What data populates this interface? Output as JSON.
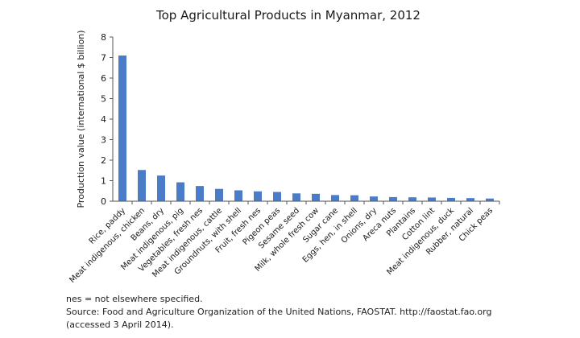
{
  "chart_data": {
    "type": "bar",
    "title": "Top Agricultural Products in Myanmar, 2012",
    "ylabel": "Production value (international $ billion)",
    "xlabel": "",
    "ylim": [
      0,
      8
    ],
    "yticks": [
      0,
      1,
      2,
      3,
      4,
      5,
      6,
      7,
      8
    ],
    "grid": false,
    "bar_color": "#4a7cc7",
    "categories": [
      "Rice, paddy",
      "Meat indigenous, chicken",
      "Beans, dry",
      "Meat indigenous, pig",
      "Vegetables, fresh nes",
      "Meat indigenous, cattle",
      "Groundnuts, with shell",
      "Fruit, fresh nes",
      "Pigeon peas",
      "Sesame seed",
      "Milk, whole fresh cow",
      "Sugar cane",
      "Eggs, hen, in shell",
      "Onions, dry",
      "Areca nuts",
      "Plantains",
      "Cotton lint",
      "Meat indigenous, duck",
      "Rubber, natural",
      "Chick peas"
    ],
    "values": [
      7.1,
      1.52,
      1.25,
      0.92,
      0.74,
      0.6,
      0.53,
      0.48,
      0.45,
      0.38,
      0.36,
      0.3,
      0.29,
      0.23,
      0.2,
      0.19,
      0.18,
      0.16,
      0.15,
      0.13
    ]
  },
  "notes": {
    "line1": "nes = not elsewhere specified.",
    "line2": "Source: Food and Agriculture Organization of the United Nations, FAOSTAT. http://faostat.fao.org",
    "line3": "(accessed 3 April 2014)."
  }
}
